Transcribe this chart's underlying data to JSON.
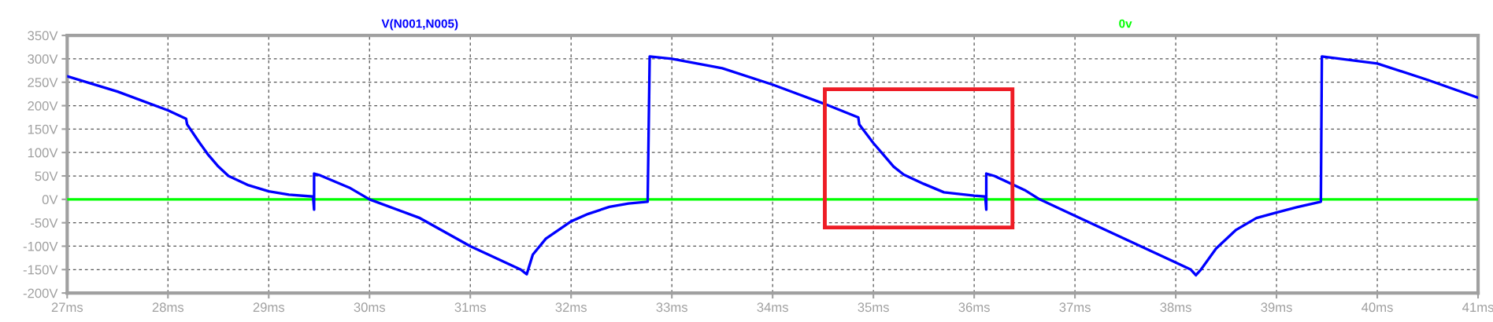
{
  "chart_data": {
    "type": "line",
    "xlim": [
      27,
      41
    ],
    "xticks": [
      {
        "value": 27,
        "label": "27ms"
      },
      {
        "value": 28,
        "label": "28ms"
      },
      {
        "value": 29,
        "label": "29ms"
      },
      {
        "value": 30,
        "label": "30ms"
      },
      {
        "value": 31,
        "label": "31ms"
      },
      {
        "value": 32,
        "label": "32ms"
      },
      {
        "value": 33,
        "label": "33ms"
      },
      {
        "value": 34,
        "label": "34ms"
      },
      {
        "value": 35,
        "label": "35ms"
      },
      {
        "value": 36,
        "label": "36ms"
      },
      {
        "value": 37,
        "label": "37ms"
      },
      {
        "value": 38,
        "label": "38ms"
      },
      {
        "value": 39,
        "label": "39ms"
      },
      {
        "value": 40,
        "label": "40ms"
      },
      {
        "value": 41,
        "label": "41ms"
      }
    ],
    "ylim": [
      -200,
      350
    ],
    "yticks": [
      {
        "value": -200,
        "label": "-200V"
      },
      {
        "value": -150,
        "label": "-150V"
      },
      {
        "value": -100,
        "label": "-100V"
      },
      {
        "value": -50,
        "label": "-50V"
      },
      {
        "value": 0,
        "label": "0V"
      },
      {
        "value": 50,
        "label": "50V"
      },
      {
        "value": 100,
        "label": "100V"
      },
      {
        "value": 150,
        "label": "150V"
      },
      {
        "value": 200,
        "label": "200V"
      },
      {
        "value": 250,
        "label": "250V"
      },
      {
        "value": 300,
        "label": "300V"
      },
      {
        "value": 350,
        "label": "350V"
      }
    ],
    "grid": true,
    "line_style": "solid",
    "series": [
      {
        "name": "V(N001,N005)",
        "color": "#0000ff",
        "x": [
          27.0,
          27.5,
          28.0,
          28.18,
          28.19,
          28.3,
          28.4,
          28.5,
          28.6,
          28.8,
          29.0,
          29.2,
          29.44,
          29.45,
          29.45,
          29.5,
          29.8,
          30.0,
          30.5,
          31.0,
          31.5,
          31.56,
          31.62,
          31.75,
          32.0,
          32.17,
          32.38,
          32.57,
          32.76,
          32.78,
          33.0,
          33.5,
          34.0,
          34.5,
          34.85,
          34.86,
          35.0,
          35.1,
          35.2,
          35.3,
          35.5,
          35.7,
          36.0,
          36.11,
          36.12,
          36.12,
          36.2,
          36.5,
          36.65,
          37.0,
          37.5,
          38.0,
          38.15,
          38.2,
          38.25,
          38.4,
          38.6,
          38.8,
          39.0,
          39.2,
          39.44,
          39.45,
          40.0,
          40.5,
          41.0
        ],
        "values": [
          263,
          230,
          190,
          172,
          160,
          125,
          95,
          70,
          50,
          30,
          17,
          10,
          6,
          -22,
          55,
          52,
          25,
          0,
          -40,
          -100,
          -150,
          -160,
          -118,
          -84,
          -47,
          -31,
          -16,
          -9,
          -5,
          305,
          300,
          280,
          245,
          205,
          175,
          160,
          120,
          95,
          70,
          53,
          33,
          15,
          8,
          6,
          -22,
          55,
          50,
          20,
          0,
          -35,
          -85,
          -135,
          -150,
          -162,
          -150,
          -105,
          -65,
          -40,
          -28,
          -17,
          -5,
          305,
          290,
          255,
          217
        ]
      },
      {
        "name": "0v",
        "color": "#00ff00",
        "x": [
          27,
          41
        ],
        "values": [
          0,
          0
        ]
      }
    ]
  }
}
